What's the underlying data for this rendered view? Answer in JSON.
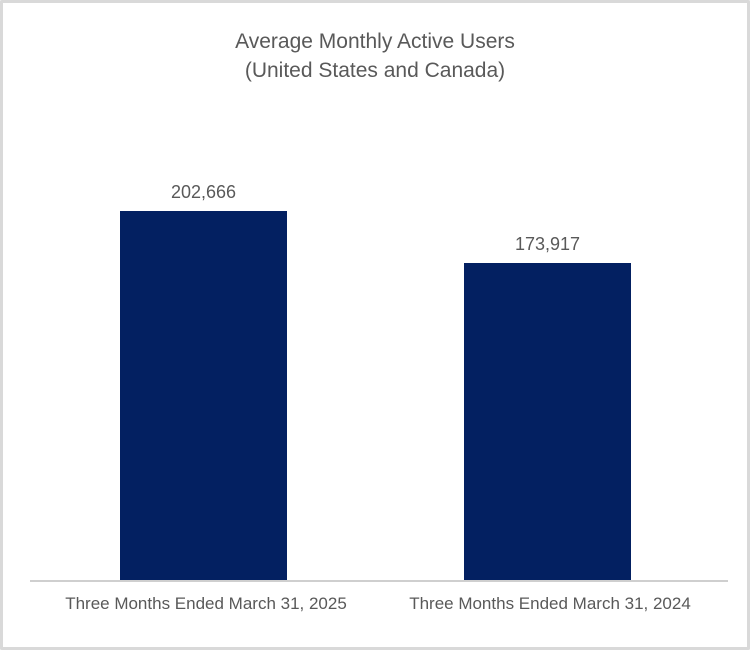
{
  "chart_data": {
    "type": "bar",
    "title": "Average Monthly Active Users",
    "subtitle": "(United States and Canada)",
    "categories": [
      "Three Months Ended March 31, 2025",
      "Three Months Ended March 31, 2024"
    ],
    "values": [
      202666,
      173917
    ],
    "value_labels": [
      "202,666",
      "173,917"
    ],
    "ylim": [
      0,
      202666
    ],
    "xlabel": "",
    "ylabel": "",
    "grid": false,
    "legend": false,
    "bar_color": "#032061",
    "text_color": "#595959",
    "axis_line_color": "#cfcfcf",
    "frame_border_color": "#d9d9d9"
  }
}
